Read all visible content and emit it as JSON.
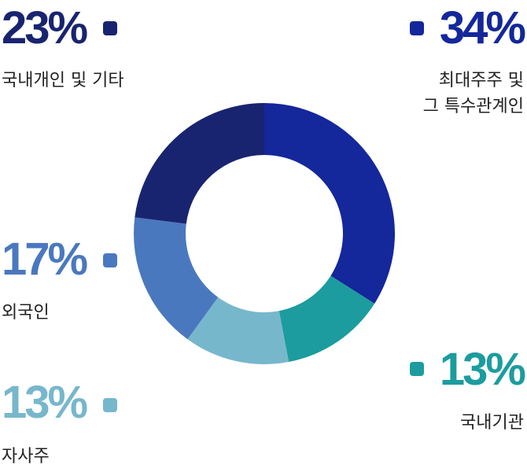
{
  "chart_data": {
    "type": "pie",
    "variant": "donut",
    "categories": [
      "최대주주 및 그 특수관계인",
      "국내기관",
      "자사주",
      "외국인",
      "국내개인 및 기타"
    ],
    "values": [
      34,
      13,
      13,
      17,
      23
    ],
    "unit": "%",
    "colors": [
      "#14279b",
      "#1c9c9e",
      "#77b7cc",
      "#4a78bf",
      "#192470"
    ],
    "legend": [
      {
        "pct": "34%",
        "label_lines": [
          "최대주주 및",
          "그 특수관계인"
        ],
        "color": "#14279b"
      },
      {
        "pct": "13%",
        "label_lines": [
          "국내기관"
        ],
        "color": "#1c9c9e"
      },
      {
        "pct": "13%",
        "label_lines": [
          "자사주"
        ],
        "color": "#77b7cc"
      },
      {
        "pct": "17%",
        "label_lines": [
          "외국인"
        ],
        "color": "#4a78bf"
      },
      {
        "pct": "23%",
        "label_lines": [
          "국내개인 및 기타"
        ],
        "color": "#192470"
      }
    ]
  }
}
